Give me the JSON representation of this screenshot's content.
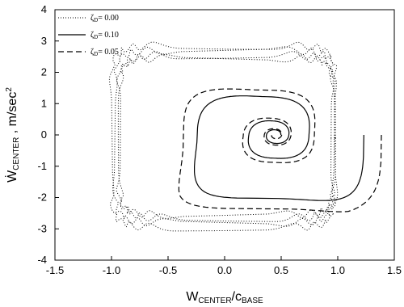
{
  "chart_data": {
    "type": "line",
    "xlabel": {
      "main": "W",
      "sub1": "CENTER",
      "slash": "/c",
      "sub2": "BASE"
    },
    "ylabel": {
      "main": "Ẇ",
      "sub": "CENTER",
      "unit": " , m/sec",
      "sup": "2"
    },
    "xlim": [
      -1.5,
      1.5
    ],
    "ylim": [
      -4,
      4
    ],
    "xticks": [
      "-1.5",
      "-1.0",
      "-0.5",
      "0.0",
      "0.5",
      "1.0",
      "1.5"
    ],
    "yticks": [
      "-4",
      "-3",
      "-2",
      "-1",
      "0",
      "1",
      "2",
      "3",
      "4"
    ],
    "legend_position": "top-left",
    "series": [
      {
        "name_sym": "ζ",
        "name_sub": "D",
        "name_rest": "= 0.00",
        "style": "dotted",
        "description_of_shape": "noisy outer band of nested near-rectangular loops between x -1.0 and 1.0, y from -3.0 to 2.9"
      },
      {
        "name_sym": "ζ",
        "name_sub": "D",
        "name_rest": "= 0.10",
        "style": "solid",
        "description_of_shape": "spiral starting at (1.0, 0) converging to focus near (0.45, 0)"
      },
      {
        "name_sym": "ζ",
        "name_sub": "D",
        "name_rest": "= 0.05",
        "style": "dashed",
        "description_of_shape": "spiral starting near (1.0, -2.2) converging to focus near (0.45, 0)"
      }
    ]
  }
}
